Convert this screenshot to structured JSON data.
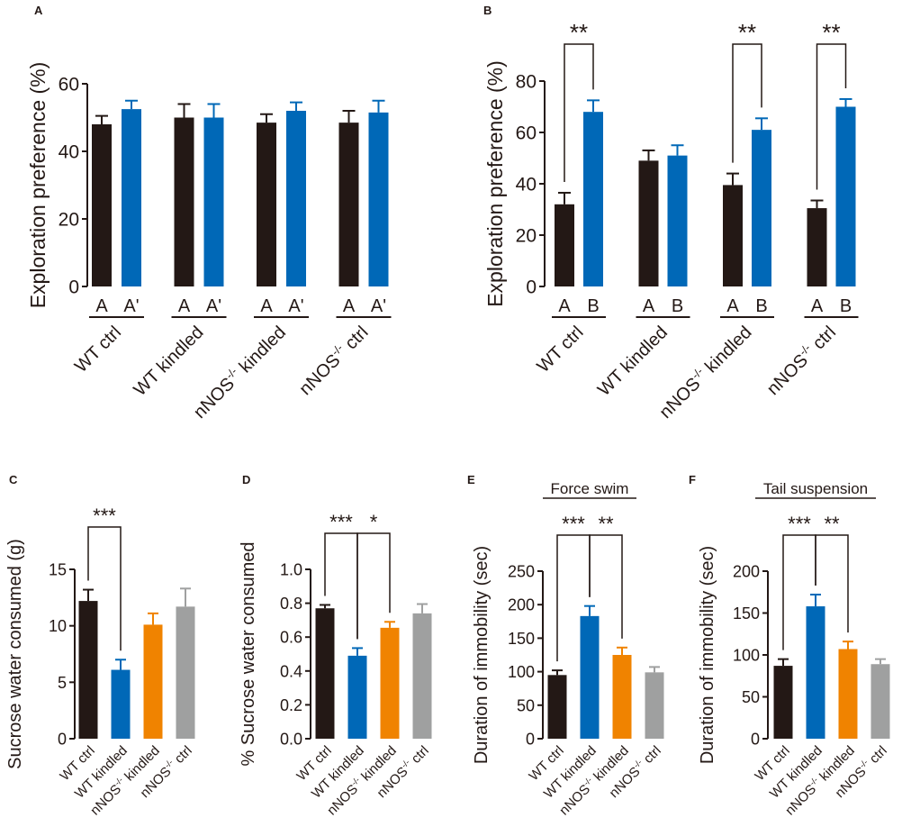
{
  "colors": {
    "black_bar": "#231815",
    "blue_bar": "#0068b7",
    "orange_bar": "#f08300",
    "gray_bar": "#9fa0a0",
    "axis": "#231815"
  },
  "chart_data": [
    {
      "panel": "A",
      "type": "bar",
      "ylabel": "Exploration preference (%)",
      "ylim": [
        0,
        60
      ],
      "yticks": [
        0,
        20,
        40,
        60
      ],
      "groups": [
        "WT ctrl",
        "WT kindled",
        "nNOS-/- kindled",
        "nNOS-/- ctrl"
      ],
      "group_base": [
        "WT ctrl",
        "WT kindled",
        "nNOS",
        "nNOS"
      ],
      "group_sup": [
        "",
        "",
        "-/-",
        "-/-"
      ],
      "group_tail": [
        "",
        "",
        " kindled",
        " ctrl"
      ],
      "series": [
        {
          "name": "A",
          "values": [
            48,
            50,
            48.5,
            48.5
          ],
          "errors": [
            2.5,
            4,
            2.5,
            3.5
          ]
        },
        {
          "name": "A'",
          "values": [
            52.5,
            50,
            52,
            51.5
          ],
          "errors": [
            2.5,
            4,
            2.5,
            3.5
          ]
        }
      ],
      "significance": []
    },
    {
      "panel": "B",
      "type": "bar",
      "ylabel": "Exploration preference (%)",
      "ylim": [
        0,
        80
      ],
      "yticks": [
        0,
        20,
        40,
        60,
        80
      ],
      "groups": [
        "WT ctrl",
        "WT kindled",
        "nNOS-/- kindled",
        "nNOS-/- ctrl"
      ],
      "group_base": [
        "WT ctrl",
        "WT kindled",
        "nNOS",
        "nNOS"
      ],
      "group_sup": [
        "",
        "",
        "-/-",
        "-/-"
      ],
      "group_tail": [
        "",
        "",
        " kindled",
        " ctrl"
      ],
      "series": [
        {
          "name": "A",
          "values": [
            32,
            49,
            39.5,
            30.5
          ],
          "errors": [
            4.5,
            4,
            4.5,
            3
          ]
        },
        {
          "name": "B",
          "values": [
            68,
            51,
            61,
            70
          ],
          "errors": [
            4.5,
            4,
            4.5,
            3
          ]
        }
      ],
      "significance": [
        {
          "label": "**",
          "group": 0
        },
        {
          "label": "**",
          "group": 2
        },
        {
          "label": "**",
          "group": 3
        }
      ]
    },
    {
      "panel": "C",
      "type": "bar",
      "ylabel": "Sucrose water consumed (g)",
      "ylim": [
        0,
        15
      ],
      "yticks": [
        0,
        5,
        10,
        15
      ],
      "categories": [
        "WT ctrl",
        "WT kindled",
        "nNOS-/- kindled",
        "nNOS-/- ctrl"
      ],
      "cat_base": [
        "WT ctrl",
        "WT kindled",
        "nNOS",
        "nNOS"
      ],
      "cat_sup": [
        "",
        "",
        "-/-",
        "-/-"
      ],
      "cat_tail": [
        "",
        "",
        " kindled",
        " ctrl"
      ],
      "values": [
        12.2,
        6.1,
        10.1,
        11.7
      ],
      "errors": [
        1,
        0.9,
        1,
        1.6
      ],
      "significance": [
        {
          "label": "***",
          "from": 0,
          "to": 1
        }
      ]
    },
    {
      "panel": "D",
      "type": "bar",
      "ylabel": "% Sucrose water consumed",
      "ylim": [
        0,
        1.0
      ],
      "yticks": [
        0.0,
        0.2,
        0.4,
        0.6,
        0.8,
        1.0
      ],
      "categories": [
        "WT ctrl",
        "WT kindled",
        "nNOS-/- kindled",
        "nNOS-/- ctrl"
      ],
      "cat_base": [
        "WT ctrl",
        "WT kindled",
        "nNOS",
        "nNOS"
      ],
      "cat_sup": [
        "",
        "",
        "-/-",
        "-/-"
      ],
      "cat_tail": [
        "",
        "",
        " kindled",
        " ctrl"
      ],
      "values": [
        0.77,
        0.49,
        0.655,
        0.74
      ],
      "errors": [
        0.02,
        0.045,
        0.035,
        0.055
      ],
      "significance": [
        {
          "label": "***",
          "from": 0,
          "to": 1
        },
        {
          "label": "*",
          "from": 1,
          "to": 2
        }
      ]
    },
    {
      "panel": "E",
      "type": "bar",
      "title": "Force swim",
      "ylabel": "Duration of immobility (sec)",
      "ylim": [
        0,
        250
      ],
      "yticks": [
        0,
        50,
        100,
        150,
        200,
        250
      ],
      "categories": [
        "WT ctrl",
        "WT kindled",
        "nNOS-/- kindled",
        "nNOS-/- ctrl"
      ],
      "cat_base": [
        "WT ctrl",
        "WT kindled",
        "nNOS",
        "nNOS"
      ],
      "cat_sup": [
        "",
        "",
        "-/-",
        "-/-"
      ],
      "cat_tail": [
        "",
        "",
        " kindled",
        " ctrl"
      ],
      "values": [
        95,
        183,
        125,
        99
      ],
      "errors": [
        7,
        15,
        11,
        8
      ],
      "significance": [
        {
          "label": "***",
          "from": 0,
          "to": 1
        },
        {
          "label": "**",
          "from": 1,
          "to": 2
        }
      ]
    },
    {
      "panel": "F",
      "type": "bar",
      "title": "Tail suspension",
      "ylabel": "Duration of immobility (sec)",
      "ylim": [
        0,
        200
      ],
      "yticks": [
        0,
        50,
        100,
        150,
        200
      ],
      "categories": [
        "WT ctrl",
        "WT kindled",
        "nNOS-/- kindled",
        "nNOS-/- ctrl"
      ],
      "cat_base": [
        "WT ctrl",
        "WT kindled",
        "nNOS",
        "nNOS"
      ],
      "cat_sup": [
        "",
        "",
        "-/-",
        "-/-"
      ],
      "cat_tail": [
        "",
        "",
        " kindled",
        " ctrl"
      ],
      "values": [
        87,
        158,
        107,
        89
      ],
      "errors": [
        8,
        14,
        9,
        6
      ],
      "significance": [
        {
          "label": "***",
          "from": 0,
          "to": 1
        },
        {
          "label": "**",
          "from": 1,
          "to": 2
        }
      ]
    }
  ]
}
